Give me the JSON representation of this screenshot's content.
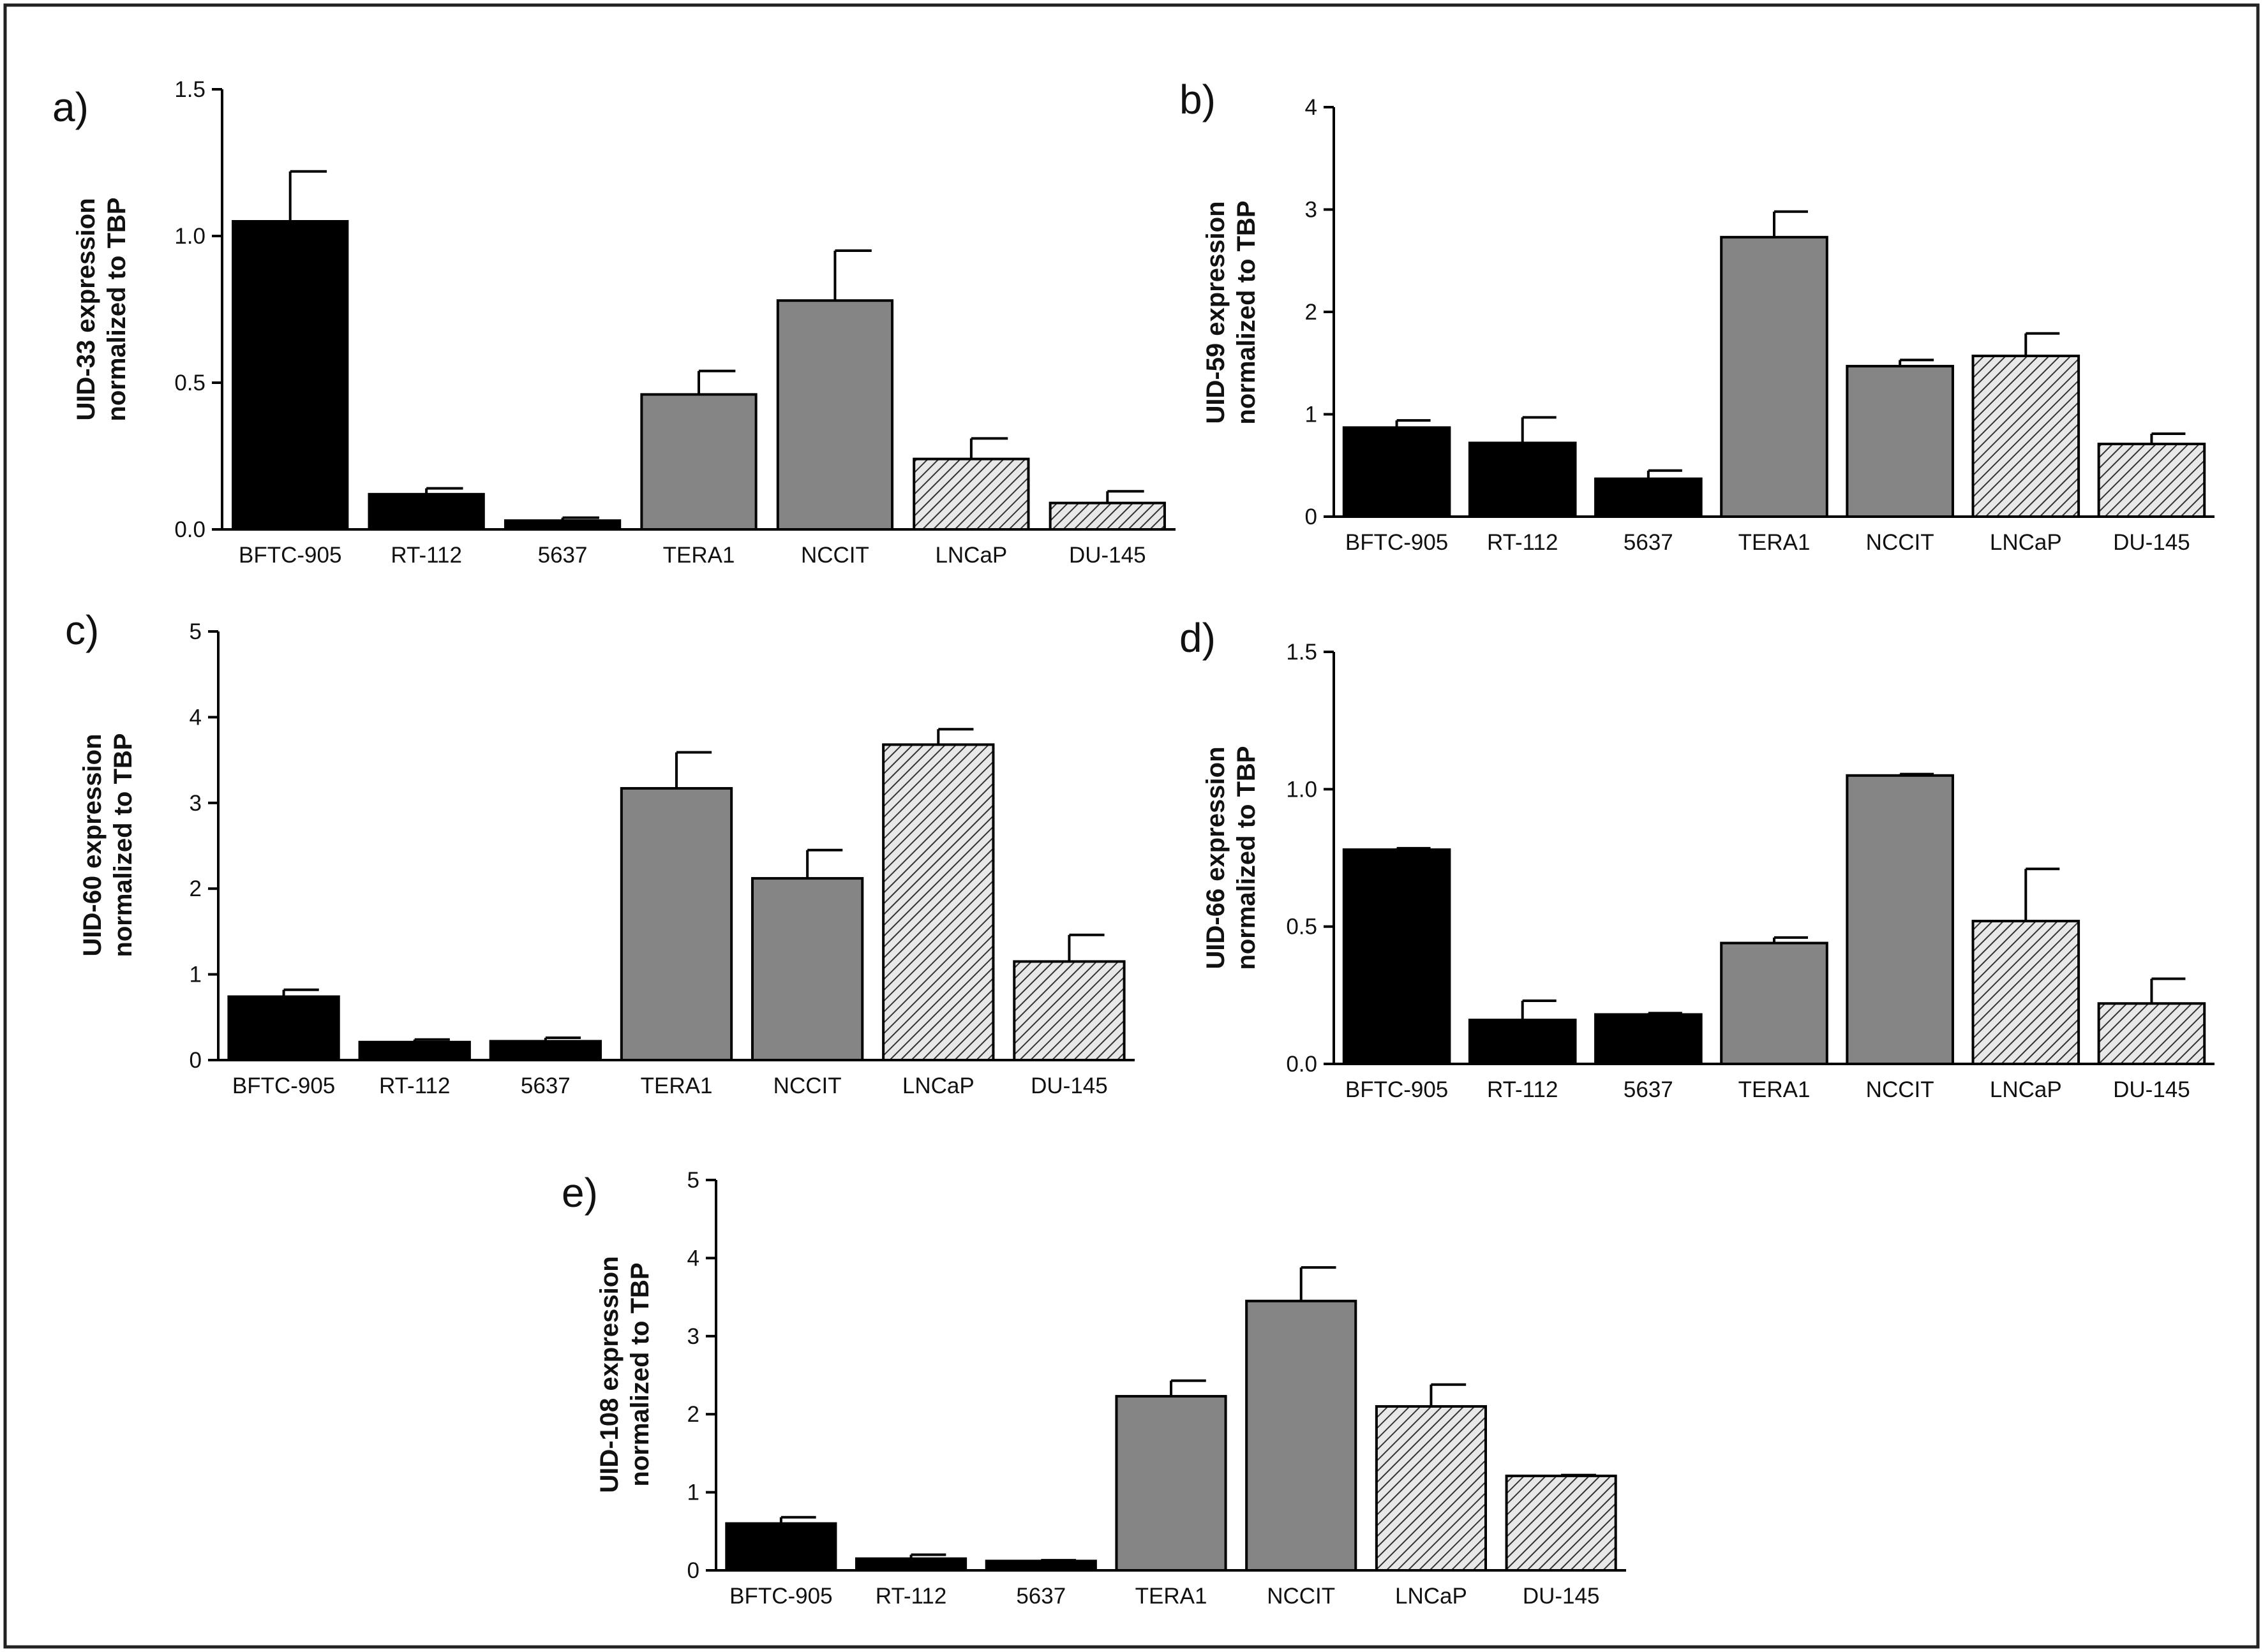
{
  "figure": {
    "description": "Expression of UID transcripts normalized to TBP across seven cell lines"
  },
  "colors": {
    "bladder": "#000000",
    "germ_cell": "#858585",
    "prostate_hatch_bg": "#e8e8e8",
    "prostate_hatch_line": "#333333",
    "frame": "#222222"
  },
  "chart_data": [
    {
      "type": "bar",
      "panel_label": "a)",
      "title": "",
      "ylabel": [
        "UID-33 expression",
        "normalized to TBP"
      ],
      "xlabel": "",
      "categories": [
        "BFTC-905",
        "RT-112",
        "5637",
        "TERA1",
        "NCCIT",
        "LNCaP",
        "DU-145"
      ],
      "groups": [
        "bladder",
        "bladder",
        "bladder",
        "germ_cell",
        "germ_cell",
        "prostate",
        "prostate"
      ],
      "values": [
        1.05,
        0.12,
        0.03,
        0.46,
        0.78,
        0.24,
        0.09
      ],
      "errors": [
        0.17,
        0.02,
        0.01,
        0.08,
        0.17,
        0.07,
        0.04
      ],
      "ylim": [
        0,
        1.5
      ],
      "yticks": [
        0.0,
        0.5,
        1.0,
        1.5
      ],
      "ytick_labels": [
        "0.0",
        "0.5",
        "1.0",
        "1.5"
      ]
    },
    {
      "type": "bar",
      "panel_label": "b)",
      "title": "",
      "ylabel": [
        "UID-59 expression",
        "normalized to TBP"
      ],
      "xlabel": "",
      "categories": [
        "BFTC-905",
        "RT-112",
        "5637",
        "TERA1",
        "NCCIT",
        "LNCaP",
        "DU-145"
      ],
      "groups": [
        "bladder",
        "bladder",
        "bladder",
        "germ_cell",
        "germ_cell",
        "prostate",
        "prostate"
      ],
      "values": [
        0.87,
        0.72,
        0.37,
        2.73,
        1.47,
        1.57,
        0.71
      ],
      "errors": [
        0.07,
        0.25,
        0.08,
        0.25,
        0.06,
        0.22,
        0.1
      ],
      "ylim": [
        0,
        4
      ],
      "yticks": [
        0,
        1,
        2,
        3,
        4
      ],
      "ytick_labels": [
        "0",
        "1",
        "2",
        "3",
        "4"
      ]
    },
    {
      "type": "bar",
      "panel_label": "c)",
      "title": "",
      "ylabel": [
        "UID-60 expression",
        "normalized to TBP"
      ],
      "xlabel": "",
      "categories": [
        "BFTC-905",
        "RT-112",
        "5637",
        "TERA1",
        "NCCIT",
        "LNCaP",
        "DU-145"
      ],
      "groups": [
        "bladder",
        "bladder",
        "bladder",
        "germ_cell",
        "germ_cell",
        "prostate",
        "prostate"
      ],
      "values": [
        0.74,
        0.21,
        0.22,
        3.17,
        2.12,
        3.68,
        1.15
      ],
      "errors": [
        0.08,
        0.03,
        0.04,
        0.42,
        0.33,
        0.18,
        0.31
      ],
      "ylim": [
        0,
        5
      ],
      "yticks": [
        0,
        1,
        2,
        3,
        4,
        5
      ],
      "ytick_labels": [
        "0",
        "1",
        "2",
        "3",
        "4",
        "5"
      ]
    },
    {
      "type": "bar",
      "panel_label": "d)",
      "title": "",
      "ylabel": [
        "UID-66 expression",
        "normalized to TBP"
      ],
      "xlabel": "",
      "categories": [
        "BFTC-905",
        "RT-112",
        "5637",
        "TERA1",
        "NCCIT",
        "LNCaP",
        "DU-145"
      ],
      "groups": [
        "bladder",
        "bladder",
        "bladder",
        "germ_cell",
        "germ_cell",
        "prostate",
        "prostate"
      ],
      "values": [
        0.78,
        0.16,
        0.18,
        0.44,
        1.05,
        0.52,
        0.22
      ],
      "errors": [
        0.005,
        0.07,
        0.005,
        0.02,
        0.005,
        0.19,
        0.09
      ],
      "ylim": [
        0,
        1.5
      ],
      "yticks": [
        0.0,
        0.5,
        1.0,
        1.5
      ],
      "ytick_labels": [
        "0.0",
        "0.5",
        "1.0",
        "1.5"
      ]
    },
    {
      "type": "bar",
      "panel_label": "e)",
      "title": "",
      "ylabel": [
        "UID-108 expression",
        "normalized to TBP"
      ],
      "xlabel": "",
      "categories": [
        "BFTC-905",
        "RT-112",
        "5637",
        "TERA1",
        "NCCIT",
        "LNCaP",
        "DU-145"
      ],
      "groups": [
        "bladder",
        "bladder",
        "bladder",
        "germ_cell",
        "germ_cell",
        "prostate",
        "prostate"
      ],
      "values": [
        0.6,
        0.15,
        0.12,
        2.23,
        3.45,
        2.1,
        1.21
      ],
      "errors": [
        0.08,
        0.05,
        0.01,
        0.2,
        0.43,
        0.28,
        0.01
      ],
      "ylim": [
        0,
        5
      ],
      "yticks": [
        0,
        1,
        2,
        3,
        4,
        5
      ],
      "ytick_labels": [
        "0",
        "1",
        "2",
        "3",
        "4",
        "5"
      ]
    }
  ]
}
